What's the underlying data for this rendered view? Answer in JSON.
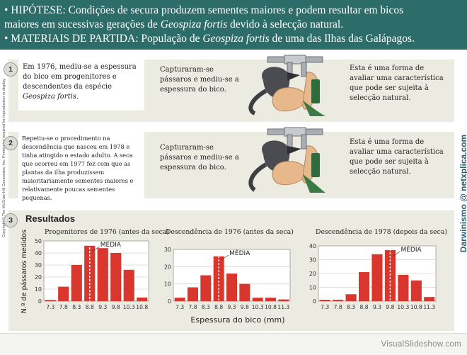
{
  "header": {
    "line1_a": "• HIPÓTESE: Condições de secura produzem sementes maiores e podem resultar em bicos",
    "line2_a": "maiores em sucessivas gerações de ",
    "line2_species": "Geospiza fortis",
    "line2_b": " devido à selecção natural.",
    "line3_a": "• MATERIAIS DE PARTIDA:  População de ",
    "line3_species": "Geospiza fortis",
    "line3_b": " de uma das Ilhas das Galápagos."
  },
  "steps": [
    {
      "number": "1",
      "paper_a": "Em 1976, mediu-se a espessura do bico em progenitores e descendentes da espécie ",
      "paper_species": "Geospiza fortis.",
      "middle": "Capturaram-se pássaros e mediu-se a espessura do bico.",
      "right": "Esta é uma forma de avaliar uma característica que pode ser sujeita à selecção natural."
    },
    {
      "number": "2",
      "paper_a": "Repetiu-se o procedimento na descendência que nasceu em 1978 e tinha atingido o estado adulto. A seca que ocorreu em 1977 fez com que as plantas da ilha produzissem maioritariamente sementes maiores e relativamente poucas sementes pequenas.",
      "middle": "Capturaram-se pássaros e mediu-se a espessura do bico.",
      "right": "Esta é uma forma de avaliar uma característica que pode ser sujeita à selecção natural."
    }
  ],
  "results": {
    "number": "3",
    "title": "Resultados",
    "ylabel": "N.º de pássaros medidos",
    "xlabel": "Espessura do bico (mm)",
    "mean_label": "MÉDIA"
  },
  "copyright": "Copyright © The McGraw-Hill Companies, Inc. Permission required for reproduction or display.",
  "watermark": "Darwinismo @ netxplica.com",
  "footer": {
    "brand": "VisualSlideshow.com"
  },
  "colors": {
    "header_bg": "#2c6d6a",
    "bar": "#d9362e",
    "panel": "#ecebe2",
    "watermark": "#2a5f7d"
  },
  "chart_data": [
    {
      "type": "bar",
      "title": "Progenitores de 1976 (antes da seca)",
      "categories": [
        "7.3",
        "7.8",
        "8.3",
        "8.8",
        "9.3",
        "9.8",
        "10.3",
        "10.8"
      ],
      "values": [
        1,
        12,
        30,
        46,
        44,
        40,
        26,
        3
      ],
      "mean": "8.8",
      "ylim": [
        0,
        50
      ],
      "yticks": [
        0,
        10,
        20,
        30,
        40,
        50
      ],
      "xlabel": "Espessura do bico (mm)",
      "ylabel": "N.º de pássaros medidos",
      "grid": true
    },
    {
      "type": "bar",
      "title": "Descendência de 1976 (antes da seca)",
      "categories": [
        "7.3",
        "7.8",
        "8.3",
        "8.8",
        "9.3",
        "9.8",
        "10.3",
        "10.8",
        "11.3"
      ],
      "values": [
        2,
        8,
        15,
        26,
        16,
        10,
        2,
        2,
        1
      ],
      "mean": "8.8",
      "ylim": [
        0,
        30
      ],
      "yticks": [
        0,
        10,
        20,
        30
      ],
      "xlabel": "Espessura do bico (mm)",
      "grid": true
    },
    {
      "type": "bar",
      "title": "Descendência de 1978 (depois da seca)",
      "categories": [
        "7.3",
        "7.8",
        "8.3",
        "8.8",
        "9.3",
        "9.8",
        "10.3",
        "10.8",
        "11.3"
      ],
      "values": [
        1,
        1,
        5,
        21,
        34,
        37,
        19,
        15,
        3
      ],
      "mean": "9.8",
      "ylim": [
        0,
        40
      ],
      "yticks": [
        0,
        10,
        20,
        30,
        40
      ],
      "xlabel": "Espessura do bico (mm)",
      "grid": true
    }
  ]
}
